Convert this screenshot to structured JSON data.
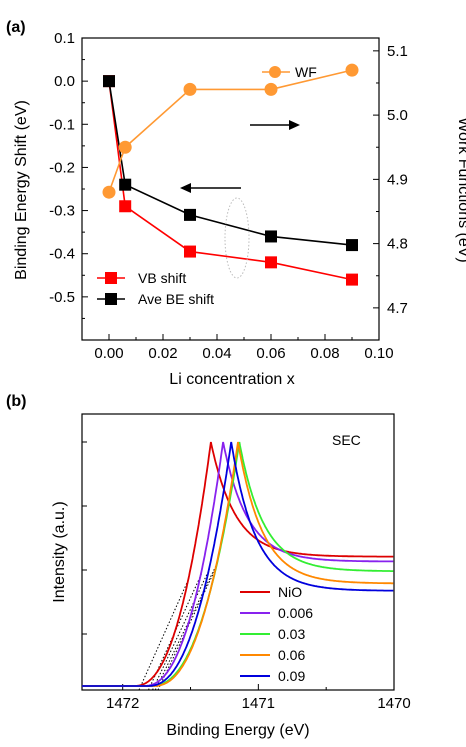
{
  "chart_data": [
    {
      "panel": "(a)",
      "type": "line",
      "xlabel": "Li concentration x",
      "ylabel": "Binding Energy Shift (eV)",
      "y2label": "Work Functions (eV)",
      "xlim": [
        -0.01,
        0.1
      ],
      "ylim": [
        -0.6,
        0.1
      ],
      "y2lim": [
        4.65,
        5.12
      ],
      "xticks": [
        "0.00",
        "0.02",
        "0.04",
        "0.06",
        "0.08",
        "0.10"
      ],
      "yticks": [
        "0.1",
        "0.0",
        "-0.1",
        "-0.2",
        "-0.3",
        "-0.4",
        "-0.5"
      ],
      "y2ticks": [
        "5.1",
        "5.0",
        "4.9",
        "4.8",
        "4.7"
      ],
      "series": [
        {
          "name": "VB shift",
          "axis": "left",
          "color": "#ff0000",
          "marker": "square",
          "x": [
            0,
            0.006,
            0.03,
            0.06,
            0.09
          ],
          "y": [
            0.0,
            -0.29,
            -0.395,
            -0.42,
            -0.46
          ]
        },
        {
          "name": "Ave BE shift",
          "axis": "left",
          "color": "#000000",
          "marker": "square",
          "x": [
            0,
            0.006,
            0.03,
            0.06,
            0.09
          ],
          "y": [
            0.0,
            -0.24,
            -0.31,
            -0.36,
            -0.38
          ]
        },
        {
          "name": "WF",
          "axis": "right",
          "color": "#ff9933",
          "marker": "circle",
          "x": [
            0,
            0.006,
            0.03,
            0.06,
            0.09
          ],
          "y": [
            4.88,
            4.95,
            5.04,
            5.04,
            5.07
          ]
        }
      ],
      "legend_loc": [
        "bottom-left",
        "top-right"
      ]
    },
    {
      "panel": "(b)",
      "type": "line",
      "xlabel": "Binding Energy (eV)",
      "ylabel": "Intensity (a.u.)",
      "annotation": "SEC",
      "xlim": [
        1472.3,
        1470.0
      ],
      "xticks": [
        "1472",
        "1471",
        "1470"
      ],
      "legend_loc": "center-right",
      "series": [
        {
          "name": "NiO",
          "color": "#dd0000",
          "x0": 1471.92,
          "peak": 1471.35,
          "tail": 0.53
        },
        {
          "name": "0.006",
          "color": "#8822ee",
          "x0": 1471.85,
          "peak": 1471.26,
          "tail": 0.51
        },
        {
          "name": "0.03",
          "color": "#33ee33",
          "x0": 1471.8,
          "peak": 1471.14,
          "tail": 0.47
        },
        {
          "name": "0.06",
          "color": "#ff8800",
          "x0": 1471.78,
          "peak": 1471.15,
          "tail": 0.42
        },
        {
          "name": "0.09",
          "color": "#0000dd",
          "x0": 1471.82,
          "peak": 1471.2,
          "tail": 0.39
        }
      ]
    }
  ]
}
